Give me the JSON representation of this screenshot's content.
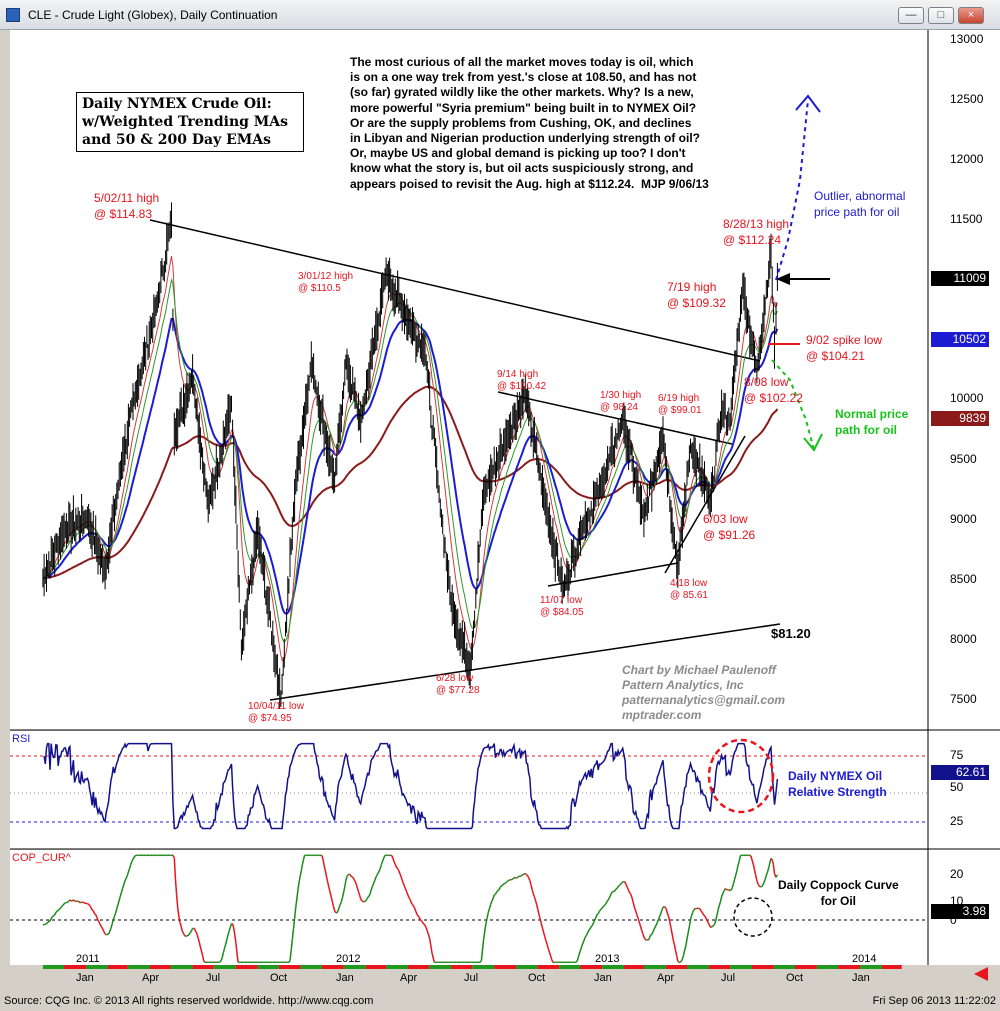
{
  "window": {
    "title": "CLE - Crude Light (Globex), Daily Continuation",
    "buttons": [
      "—",
      "□",
      "×"
    ]
  },
  "footer": {
    "left": "Source: CQG Inc. © 2013 All rights reserved worldwide. http://www.cqg.com",
    "right": "Fri Sep 06 2013 11:22:02"
  },
  "colors": {
    "price_bars": "#000000",
    "ema50": "#1c1cd2",
    "ema200": "#8b1a1a",
    "annotation_red": "#e8141e",
    "annotation_blue": "#1c1cd2",
    "annotation_green": "#17c21a",
    "rsi_line": "#12128c",
    "coppock_up": "#1a8a1a",
    "coppock_down": "#e8141e"
  },
  "annotations": {
    "title_box": "Daily NYMEX Crude Oil:\nw/Weighted Trending MAs\nand 50 & 200 Day EMAs",
    "commentary": "The most curious of all the market moves today is oil, which\nis on a one way trek from yest.'s close at 108.50, and has not\n(so far) gyrated wildly like the other markets. Why? Is a new,\nmore powerful \"Syria premium\" being built in to NYMEX Oil?\nOr are the supply problems from Cushing, OK, and declines\nin Libyan and Nigerian production underlying strength of oil?\nOr, maybe US and global demand is picking up too? I don't\nknow what the story is, but oil acts suspiciously strong, and\nappears poised to revisit the Aug. high at $112.24.  MJP 9/06/13",
    "high_502": "5/02/11 high\n@ $114.83",
    "high_301": "3/01/12 high\n@ $110.5",
    "high_914": "9/14 high\n@ $100.42",
    "high_130": "1/30 high\n@ 98.24",
    "high_619": "6/19 high\n@ $99.01",
    "high_719": "7/19 high\n@ $109.32",
    "high_828": "8/28/13 high\n@ $112.24",
    "low_902": "9/02 spike low\n@ $104.21",
    "low_808": "8/08 low\n@ $102.22",
    "low_603": "6/03 low\n@ $91.26",
    "low_418": "4/18 low\n@ 85.61",
    "low_1107": "11/07 low\n@ $84.05",
    "low_628": "6/28 low\n@ $77.28",
    "low_1004": "10/04/11 low\n@ $74.95",
    "level_8120": "$81.20",
    "outlier": "Outlier, abnormal\nprice path for oil",
    "normal": "Normal price\npath for oil",
    "credit": "Chart by Michael Paulenoff\nPattern Analytics, Inc\npatternanalytics@gmail.com\nmptrader.com",
    "rsi_note": "Daily NYMEX Oil\nRelative Strength",
    "coppock_note": "Daily Coppock Curve\nfor Oil"
  },
  "panels": {
    "rsi_label": "RSI",
    "coppock_label": "COP_CUR^"
  },
  "chart_data": {
    "type": "line",
    "title": "CLE - Crude Light (Globex), Daily Continuation",
    "price_axis": {
      "ticks": [
        "13000",
        "12500",
        "12000",
        "11500",
        "11000",
        "10500",
        "10000",
        "9500",
        "9000",
        "8500",
        "8000",
        "7500"
      ],
      "range": [
        7000,
        13100
      ]
    },
    "current_markers": {
      "last_price": "11009",
      "ema50": "10502",
      "ema200": "9839",
      "rsi": "62.61",
      "coppock": "3.98"
    },
    "rsi_axis": {
      "ticks": [
        "75",
        "50",
        "25"
      ],
      "range": [
        15,
        90
      ]
    },
    "coppock_axis": {
      "ticks": [
        "20",
        "10",
        "0"
      ],
      "range": [
        -15,
        28
      ]
    },
    "time_axis": {
      "years": [
        "2011",
        "2012",
        "2013",
        "2014"
      ],
      "months": [
        "Jan",
        "Apr",
        "Jul",
        "Oct",
        "Jan",
        "Apr",
        "Jul",
        "Oct",
        "Jan",
        "Apr",
        "Jul",
        "Oct",
        "Jan"
      ]
    },
    "series": [
      {
        "name": "Crude Light daily close",
        "points": [
          [
            "2010-11-01",
            8500
          ],
          [
            "2010-12-01",
            8900
          ],
          [
            "2011-01-03",
            9000
          ],
          [
            "2011-01-28",
            8550
          ],
          [
            "2011-02-22",
            9500
          ],
          [
            "2011-03-15",
            10100
          ],
          [
            "2011-04-12",
            10800
          ],
          [
            "2011-05-02",
            11483
          ],
          [
            "2011-05-06",
            9700
          ],
          [
            "2011-06-01",
            10200
          ],
          [
            "2011-06-23",
            9100
          ],
          [
            "2011-07-26",
            9950
          ],
          [
            "2011-08-09",
            7900
          ],
          [
            "2011-09-01",
            8900
          ],
          [
            "2011-10-04",
            7495
          ],
          [
            "2011-10-25",
            9300
          ],
          [
            "2011-11-16",
            10300
          ],
          [
            "2011-12-19",
            9300
          ],
          [
            "2012-01-04",
            10300
          ],
          [
            "2012-01-25",
            9800
          ],
          [
            "2012-03-01",
            11050
          ],
          [
            "2012-03-27",
            10700
          ],
          [
            "2012-04-25",
            10400
          ],
          [
            "2012-05-15",
            9200
          ],
          [
            "2012-06-01",
            8300
          ],
          [
            "2012-06-28",
            7728
          ],
          [
            "2012-07-17",
            9200
          ],
          [
            "2012-08-21",
            9700
          ],
          [
            "2012-09-14",
            10042
          ],
          [
            "2012-10-10",
            9200
          ],
          [
            "2012-11-07",
            8405
          ],
          [
            "2012-12-03",
            8900
          ],
          [
            "2013-01-02",
            9300
          ],
          [
            "2013-01-30",
            9824
          ],
          [
            "2013-03-01",
            9000
          ],
          [
            "2013-03-28",
            9700
          ],
          [
            "2013-04-18",
            8561
          ],
          [
            "2013-05-06",
            9600
          ],
          [
            "2013-06-03",
            9126
          ],
          [
            "2013-06-19",
            9901
          ],
          [
            "2013-07-01",
            9800
          ],
          [
            "2013-07-19",
            10932
          ],
          [
            "2013-08-08",
            10222
          ],
          [
            "2013-08-28",
            11224
          ],
          [
            "2013-09-02",
            10421
          ],
          [
            "2013-09-06",
            11009
          ]
        ]
      },
      {
        "name": "50 Day EMA"
      },
      {
        "name": "200 Day EMA"
      },
      {
        "name": "RSI"
      },
      {
        "name": "COP_CUR^"
      }
    ]
  }
}
